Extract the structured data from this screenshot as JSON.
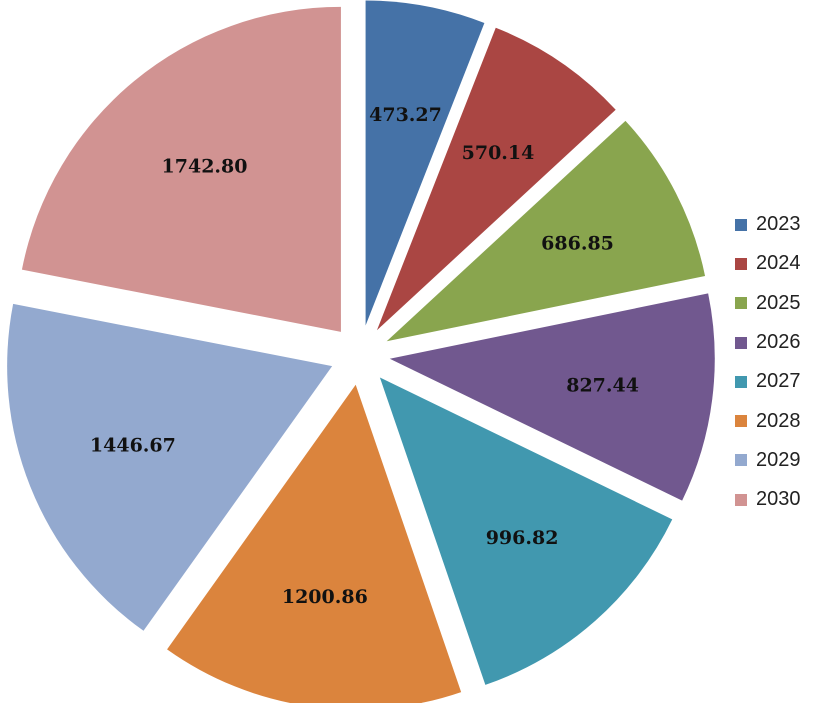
{
  "chart_data": {
    "type": "pie",
    "exploded": true,
    "legend_position": "right",
    "categories": [
      "2023",
      "2024",
      "2025",
      "2026",
      "2027",
      "2028",
      "2029",
      "2030"
    ],
    "values": [
      473.27,
      570.14,
      686.85,
      827.44,
      996.82,
      1200.86,
      1446.67,
      1742.8
    ],
    "labels": [
      "473.27",
      "570.14",
      "686.85",
      "827.44",
      "996.82",
      "1200.86",
      "1446.67",
      "1742.80"
    ],
    "colors": [
      "#4572A7",
      "#AA4643",
      "#89A54E",
      "#71588F",
      "#4198AF",
      "#DB843D",
      "#93A9CF",
      "#D19392"
    ]
  }
}
